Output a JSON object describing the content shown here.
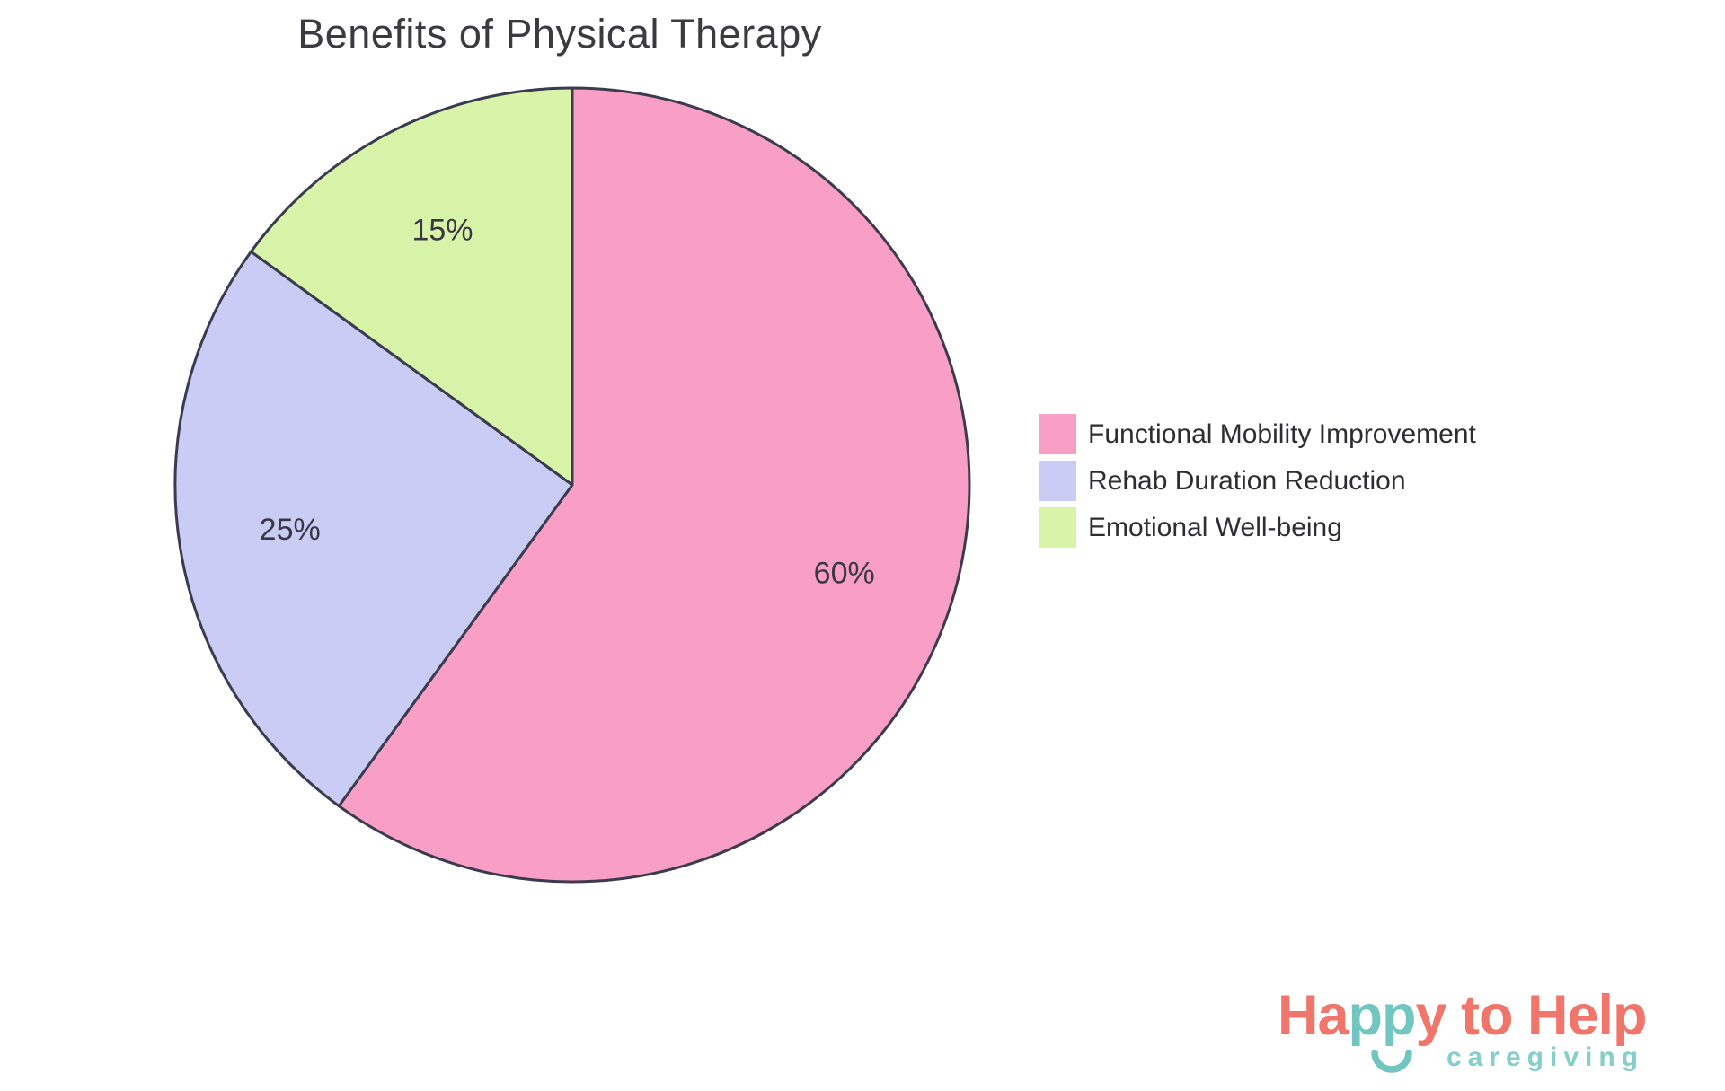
{
  "title": "Benefits of Physical Therapy",
  "chart_data": {
    "type": "pie",
    "title": "Benefits of Physical Therapy",
    "labels": [
      "Functional Mobility Improvement",
      "Rehab Duration Reduction",
      "Emotional Well-being"
    ],
    "values": [
      60,
      25,
      15
    ],
    "percent_labels": [
      "60%",
      "25%",
      "15%"
    ],
    "colors": [
      "#F99FC6",
      "#C9CCF4",
      "#D7F4A9"
    ],
    "slice_border_color": "#3B3B4F",
    "slice_border_width": 3,
    "percent_label_color": "#3A3744",
    "start_angle": "top",
    "direction": "clockwise",
    "legend_position": "right"
  },
  "legend": {
    "items": [
      {
        "label": "Functional Mobility Improvement",
        "color": "#F99FC6"
      },
      {
        "label": "Rehab Duration Reduction",
        "color": "#C9CCF4"
      },
      {
        "label": "Emotional Well-being",
        "color": "#D7F4A9"
      }
    ]
  },
  "logo": {
    "word_pre": "Ha",
    "word_mid": "pp",
    "word_post": "y to Help",
    "tagline": "caregiving",
    "coral": "#F0756A",
    "teal": "#72C6C2",
    "tagline_color": "#85CEC9"
  }
}
